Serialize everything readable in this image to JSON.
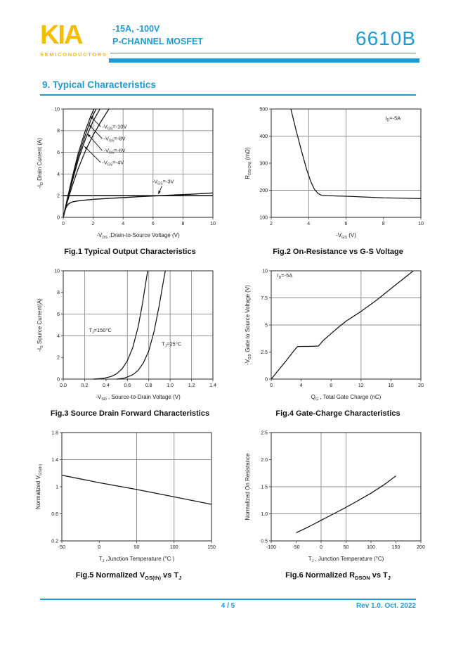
{
  "colors": {
    "brand_blue": "#1b9cd8",
    "brand_yellow": "#f5bd00",
    "curve": "#141414",
    "grid": "#8c8c8c"
  },
  "header": {
    "logo_text": "KIA",
    "logo_subtext": "SEMICONDUCTORS",
    "rating_line": "-15A,  -100V",
    "type_line": "P-CHANNEL MOSFET",
    "part_number": "6610B"
  },
  "section": {
    "title": "9.  Typical Characteristics"
  },
  "footer": {
    "page": "4 / 5",
    "rev": "Rev 1.0. Oct. 2022"
  },
  "chart_data": [
    {
      "id": "fig1",
      "type": "line",
      "caption": "Fig.1 Typical Output Characteristics",
      "xlabel": "-V~DS~ ,Drain-to-Source Voltage (V)",
      "ylabel": "-I~D~ Drain Current (A)",
      "xlim": [
        0,
        10
      ],
      "ylim": [
        0,
        10
      ],
      "xticks": [
        0,
        2,
        4,
        6,
        8,
        10
      ],
      "xtick_labels": [
        "0",
        "2",
        "4",
        "6",
        "8",
        "10"
      ],
      "yticks": [
        0,
        2,
        4,
        6,
        8,
        10
      ],
      "ytick_labels": [
        "0",
        "2",
        "4",
        "6",
        "8",
        "10"
      ],
      "grid_x": [
        2,
        4,
        6,
        8
      ],
      "grid_y": [
        4,
        6,
        8
      ],
      "grid_dark_y": [
        2
      ],
      "series": [
        {
          "name": "-V~GS~=-10V",
          "points": [
            [
              0,
              0
            ],
            [
              0.25,
              1.6
            ],
            [
              0.6,
              3.7
            ],
            [
              1.0,
              5.9
            ],
            [
              1.45,
              7.9
            ],
            [
              1.8,
              9.2
            ],
            [
              2.05,
              10
            ]
          ]
        },
        {
          "name": "-V~GS~=-8V",
          "points": [
            [
              0,
              0
            ],
            [
              0.25,
              1.5
            ],
            [
              0.6,
              3.5
            ],
            [
              1.0,
              5.6
            ],
            [
              1.5,
              7.7
            ],
            [
              1.9,
              9.2
            ],
            [
              2.2,
              10
            ]
          ]
        },
        {
          "name": "-V~GS~=-6V",
          "points": [
            [
              0,
              0
            ],
            [
              0.25,
              1.45
            ],
            [
              0.6,
              3.3
            ],
            [
              1.0,
              5.3
            ],
            [
              1.5,
              7.3
            ],
            [
              2.0,
              8.9
            ],
            [
              2.45,
              10
            ]
          ]
        },
        {
          "name": "-V~GS~=-4V",
          "points": [
            [
              0,
              0
            ],
            [
              0.25,
              1.3
            ],
            [
              0.6,
              2.9
            ],
            [
              1.0,
              4.5
            ],
            [
              1.5,
              6.2
            ],
            [
              2.0,
              7.6
            ],
            [
              2.5,
              8.8
            ],
            [
              3.05,
              10
            ]
          ]
        },
        {
          "name": "-V~GS~=-3V",
          "points": [
            [
              0,
              0
            ],
            [
              0.1,
              0.55
            ],
            [
              0.2,
              0.95
            ],
            [
              0.35,
              1.25
            ],
            [
              0.6,
              1.42
            ],
            [
              1.0,
              1.52
            ],
            [
              1.5,
              1.6
            ],
            [
              2.0,
              1.66
            ],
            [
              3.0,
              1.75
            ],
            [
              4.0,
              1.82
            ],
            [
              5.0,
              1.9
            ],
            [
              6.0,
              1.97
            ],
            [
              6.5,
              2.0
            ],
            [
              7.5,
              2.07
            ],
            [
              8.5,
              2.13
            ],
            [
              10,
              2.25
            ]
          ],
          "width": 1.4
        }
      ],
      "annotations": [
        {
          "text": "-V~GS~=-10V",
          "x": 2.6,
          "y": 8.2,
          "ax": 1.8,
          "ay": 9.35
        },
        {
          "text": "-V~GS~=-8V",
          "x": 2.7,
          "y": 7.1,
          "ax": 1.72,
          "ay": 8.55
        },
        {
          "text": "-V~GS~=-6V",
          "x": 2.7,
          "y": 6.0,
          "ax": 1.62,
          "ay": 7.7
        },
        {
          "text": "-V~GS~=-4V",
          "x": 2.6,
          "y": 4.9,
          "ax": 1.42,
          "ay": 6.55
        },
        {
          "text": "-V~GS~=-3V",
          "x": 5.95,
          "y": 3.15,
          "sx": 6.6,
          "sy": 2.9,
          "ax": 6.35,
          "ay": 2.15
        }
      ]
    },
    {
      "id": "fig2",
      "type": "line",
      "caption": "Fig.2 On-Resistance vs G-S Voltage",
      "xlabel": "-V~GS~ (V)",
      "ylabel": "R~DS(ON)~ (mΩ)",
      "xlim": [
        2,
        10
      ],
      "ylim": [
        100,
        500
      ],
      "xticks": [
        2,
        4,
        6,
        8,
        10
      ],
      "xtick_labels": [
        "2",
        "4",
        "6",
        "8",
        "10"
      ],
      "yticks": [
        100,
        200,
        300,
        400,
        500
      ],
      "ytick_labels": [
        "100",
        "200",
        "300",
        "400",
        "500"
      ],
      "grid_x": [
        4,
        6
      ],
      "grid_y": [
        200,
        400
      ],
      "series": [
        {
          "name": "R~DS(ON)~",
          "points": [
            [
              3.05,
              500
            ],
            [
              3.3,
              430
            ],
            [
              3.6,
              350
            ],
            [
              3.9,
              275
            ],
            [
              4.1,
              235
            ],
            [
              4.3,
              205
            ],
            [
              4.5,
              188
            ],
            [
              4.7,
              181
            ],
            [
              5.5,
              179
            ],
            [
              6,
              178
            ],
            [
              7,
              175
            ],
            [
              8,
              172
            ],
            [
              9,
              171
            ],
            [
              10,
              169
            ]
          ]
        }
      ],
      "annotations": [
        {
          "text": "I~D~=-5A",
          "x": 8.1,
          "y": 460
        }
      ]
    },
    {
      "id": "fig3",
      "type": "line",
      "caption": "Fig.3 Source Drain Forward Characteristics",
      "xlabel": "-V~SD~ , Source-to-Drain Voltage (V)",
      "ylabel": "-I~S~ Source Current(A)",
      "xlim": [
        0,
        1.4
      ],
      "ylim": [
        0,
        10
      ],
      "xticks": [
        0,
        0.2,
        0.4,
        0.6,
        0.8,
        1.0,
        1.2,
        1.4
      ],
      "xtick_labels": [
        "0.0",
        "0.2",
        "0.4",
        "0.6",
        "0.8",
        "1.0",
        "1.2",
        "1.4"
      ],
      "yticks": [
        0,
        2,
        4,
        6,
        8,
        10
      ],
      "ytick_labels": [
        "0",
        "2",
        "4",
        "6",
        "8",
        "10"
      ],
      "grid_x": [
        0.2,
        0.6,
        0.8,
        1.0,
        1.2
      ],
      "grid_y": [
        4,
        6
      ],
      "series": [
        {
          "name": "T~J~=150°C",
          "points": [
            [
              0.28,
              0
            ],
            [
              0.38,
              0.08
            ],
            [
              0.45,
              0.25
            ],
            [
              0.5,
              0.5
            ],
            [
              0.55,
              0.95
            ],
            [
              0.6,
              1.7
            ],
            [
              0.65,
              2.9
            ],
            [
              0.7,
              4.8
            ],
            [
              0.74,
              6.9
            ],
            [
              0.77,
              8.8
            ],
            [
              0.79,
              10
            ]
          ]
        },
        {
          "name": "T~J~=25°C",
          "points": [
            [
              0.5,
              0
            ],
            [
              0.58,
              0.12
            ],
            [
              0.65,
              0.4
            ],
            [
              0.7,
              0.8
            ],
            [
              0.75,
              1.5
            ],
            [
              0.8,
              2.6
            ],
            [
              0.85,
              4.4
            ],
            [
              0.9,
              6.9
            ],
            [
              0.94,
              9.2
            ],
            [
              0.955,
              10
            ]
          ]
        }
      ],
      "annotations": [
        {
          "text": "T~J~=150°C",
          "x": 0.24,
          "y": 4.35
        },
        {
          "text": "T~J~=25°C",
          "x": 0.92,
          "y": 3.1
        }
      ]
    },
    {
      "id": "fig4",
      "type": "line",
      "caption": "Fig.4 Gate-Charge Characteristics",
      "xlabel": "Q~G~ , Total Gate Charge (nC)",
      "ylabel": "-V~GS~  Gate to Source Voltage (V)",
      "xlim": [
        0,
        20
      ],
      "ylim": [
        0,
        10
      ],
      "xticks": [
        0,
        4,
        8,
        12,
        16,
        20
      ],
      "xtick_labels": [
        "0",
        "4",
        "8",
        "12",
        "16",
        "20"
      ],
      "yticks": [
        0,
        2.5,
        5,
        7.5,
        10
      ],
      "ytick_labels": [
        "0",
        "2.5",
        "5",
        "7.5",
        "10"
      ],
      "grid_x": [
        12
      ],
      "grid_y": [
        5,
        7.5
      ],
      "series": [
        {
          "name": "gate-charge",
          "points": [
            [
              0,
              0
            ],
            [
              1,
              0.85
            ],
            [
              2,
              1.7
            ],
            [
              3,
              2.6
            ],
            [
              3.5,
              3.0
            ],
            [
              4,
              3.02
            ],
            [
              5,
              3.02
            ],
            [
              6.3,
              3.05
            ],
            [
              7,
              3.6
            ],
            [
              8,
              4.2
            ],
            [
              9,
              4.8
            ],
            [
              10,
              5.35
            ],
            [
              11,
              5.8
            ],
            [
              12,
              6.25
            ],
            [
              13,
              6.75
            ],
            [
              14,
              7.25
            ],
            [
              15,
              7.8
            ],
            [
              16,
              8.35
            ],
            [
              17,
              8.9
            ],
            [
              18,
              9.45
            ],
            [
              19,
              10
            ]
          ]
        }
      ],
      "annotations": [
        {
          "text": "I~D~=-5A",
          "x": 0.8,
          "y": 9.4
        }
      ]
    },
    {
      "id": "fig5",
      "type": "line",
      "caption": "Fig.5 Normalized V~GS(th)~ vs T~J~",
      "xlabel": "T~J~ ,Junction Temperature (°C )",
      "ylabel": "Normalized V~GS(th)~",
      "xlim": [
        -50,
        150
      ],
      "ylim": [
        0.2,
        1.8
      ],
      "xticks": [
        -50,
        0,
        50,
        100,
        150
      ],
      "xtick_labels": [
        "-50",
        "0",
        "50",
        "100",
        "150"
      ],
      "yticks": [
        0.2,
        0.6,
        1,
        1.4,
        1.8
      ],
      "ytick_labels": [
        "0.2",
        "0.6",
        "1",
        "1.4",
        "1.8"
      ],
      "grid_x": [
        50,
        100
      ],
      "grid_y": [
        1.4
      ],
      "series": [
        {
          "name": "normalized-vgsth",
          "points": [
            [
              -50,
              1.17
            ],
            [
              0,
              1.06
            ],
            [
              50,
              0.96
            ],
            [
              100,
              0.85
            ],
            [
              150,
              0.74
            ]
          ]
        }
      ],
      "annotations": []
    },
    {
      "id": "fig6",
      "type": "line",
      "caption": "Fig.6 Normalized R~DSON~ vs T~J~",
      "xlabel": "T~J~ , Junction Temperature (°C)",
      "ylabel": "Normalized On Resistance",
      "xlim": [
        -100,
        200
      ],
      "ylim": [
        0.5,
        2.5
      ],
      "xticks": [
        -100,
        -50,
        0,
        50,
        100,
        150,
        200
      ],
      "xtick_labels": [
        "-100",
        "-50",
        "0",
        "50",
        "100",
        "150",
        "200"
      ],
      "yticks": [
        0.5,
        1.0,
        1.5,
        2.0,
        2.5
      ],
      "ytick_labels": [
        "0.5",
        "1.0",
        "1.5",
        "2.0",
        "2.5"
      ],
      "grid_x": [
        0,
        50
      ],
      "grid_y": [
        1.0,
        1.5
      ],
      "series": [
        {
          "name": "normalized-rdson",
          "points": [
            [
              -50,
              0.65
            ],
            [
              -25,
              0.76
            ],
            [
              0,
              0.88
            ],
            [
              25,
              1.0
            ],
            [
              50,
              1.12
            ],
            [
              75,
              1.25
            ],
            [
              100,
              1.38
            ],
            [
              125,
              1.53
            ],
            [
              150,
              1.7
            ]
          ]
        }
      ],
      "annotations": []
    }
  ]
}
